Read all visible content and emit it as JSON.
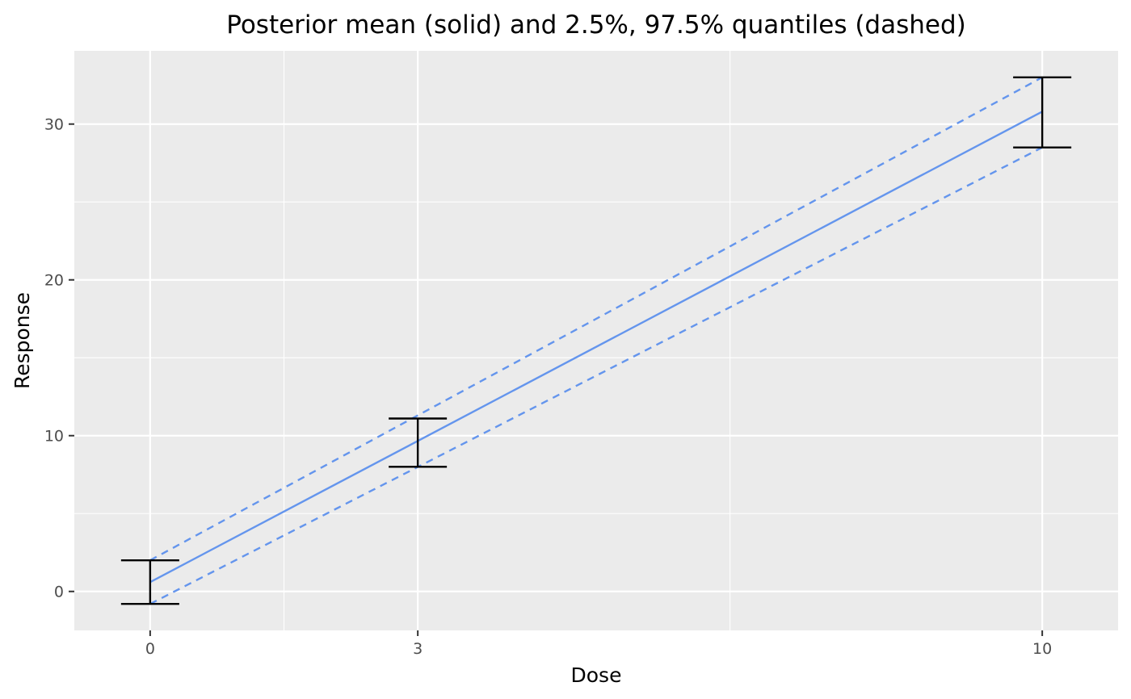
{
  "chart_data": {
    "type": "line",
    "title": "Posterior mean (solid) and 2.5%, 97.5% quantiles (dashed)",
    "xlabel": "Dose",
    "ylabel": "Response",
    "xlim": [
      -0.85,
      10.85
    ],
    "ylim": [
      -2.5,
      34.7
    ],
    "xticks": [
      0,
      3,
      10
    ],
    "yticks": [
      0,
      10,
      20,
      30
    ],
    "grid": true,
    "legend": "none",
    "series": [
      {
        "role": "mean",
        "style": "solid",
        "color": "#6495ED",
        "x": [
          0,
          10
        ],
        "y": [
          0.6,
          30.8
        ]
      },
      {
        "role": "upper",
        "style": "dashed",
        "color": "#6495ED",
        "x": [
          0,
          10
        ],
        "y": [
          2.0,
          33.0
        ]
      },
      {
        "role": "lower",
        "style": "dashed",
        "color": "#6495ED",
        "x": [
          0,
          10
        ],
        "y": [
          -0.8,
          28.5
        ]
      }
    ],
    "error_bars": [
      {
        "x": 0,
        "low": -0.8,
        "high": 2.0
      },
      {
        "x": 3,
        "low": 8.0,
        "high": 11.1
      },
      {
        "x": 10,
        "low": 28.5,
        "high": 33.0
      }
    ],
    "colors": {
      "panel": "#EBEBEB",
      "grid": "#FFFFFF",
      "errorbar": "#000000",
      "line": "#6495ED"
    }
  }
}
